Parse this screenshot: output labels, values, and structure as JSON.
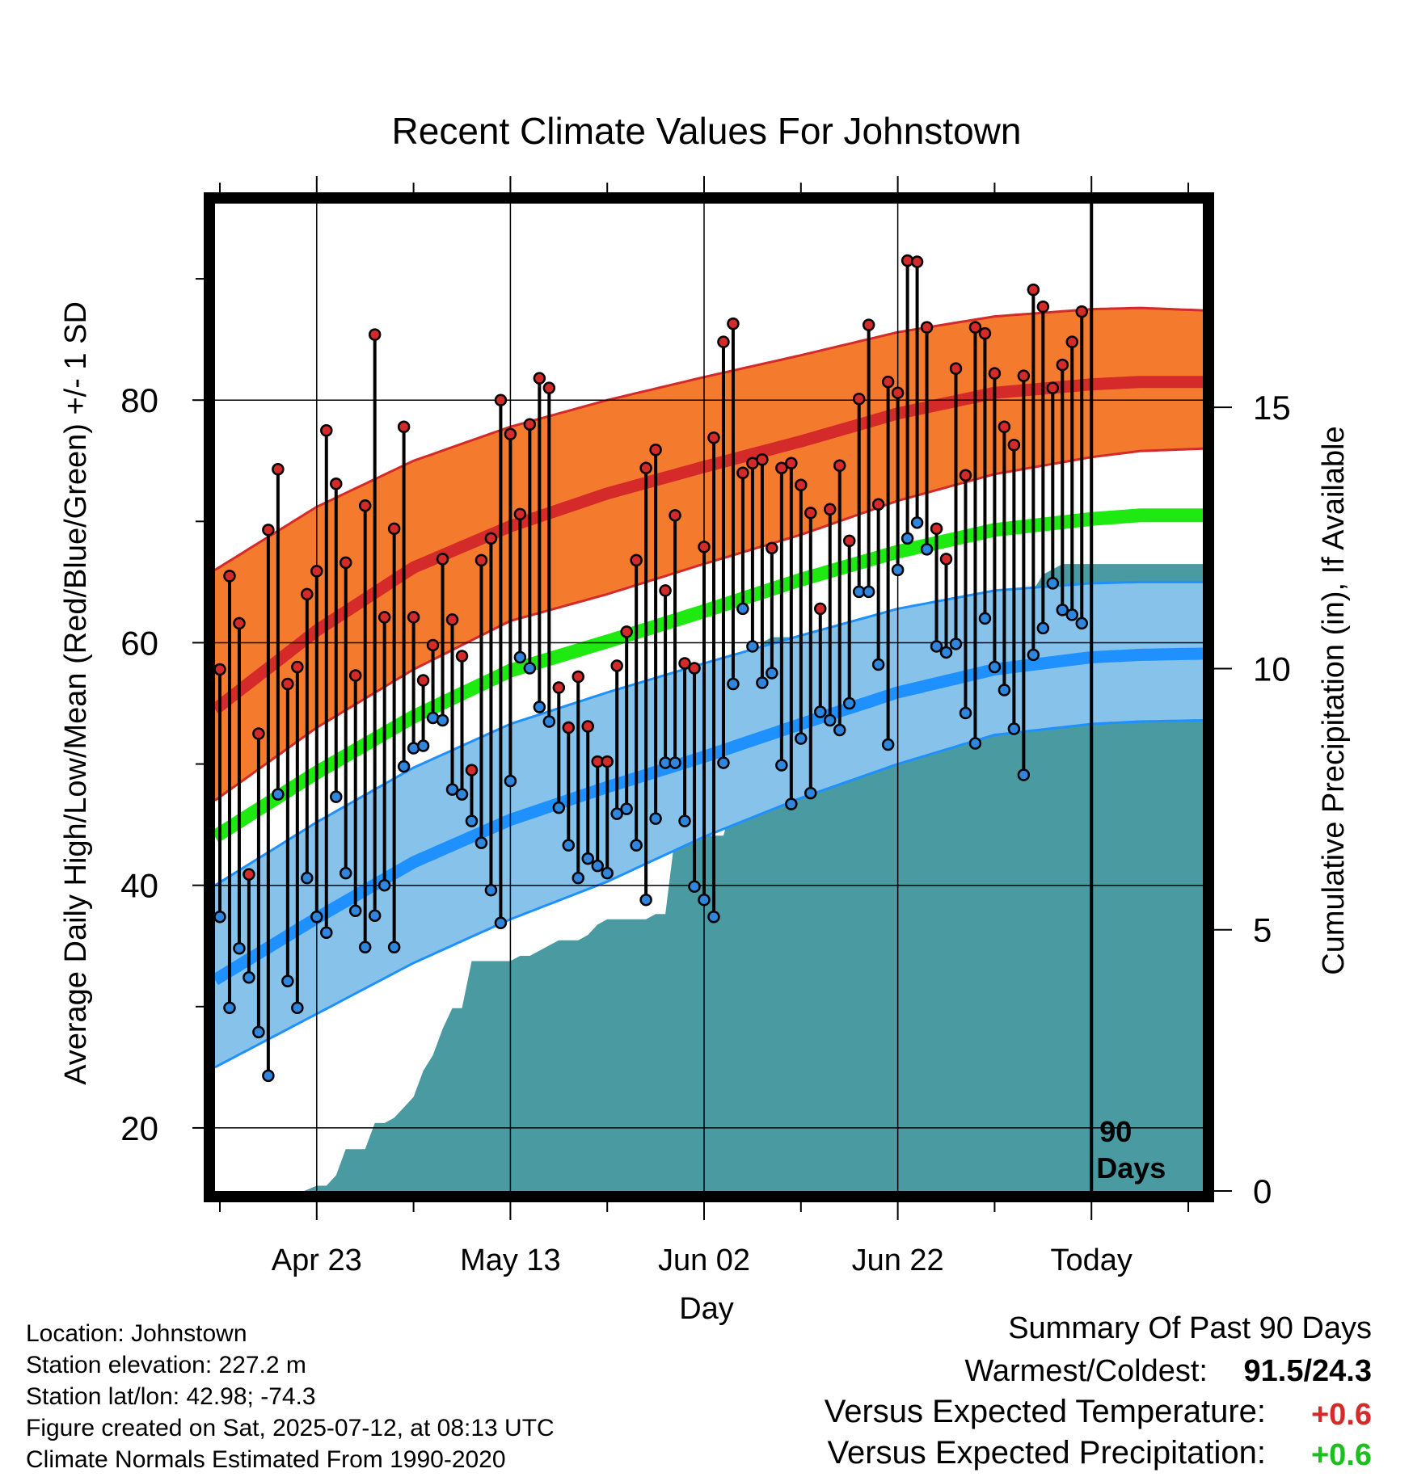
{
  "chart_data": {
    "type": "line",
    "title": "Recent Climate Values For Johnstown",
    "ylabel": "Average Daily High/Low/Mean (Red/Blue/Green) +/- 1 SD",
    "ylabel_right": "Cumulative Precipitation (in), If Available",
    "xlabel": "Day",
    "ylim": [
      14.8,
      96.2
    ],
    "ylim_right": [
      0,
      18.9
    ],
    "xlim": [
      -10.5,
      91.5
    ],
    "yticks": [
      20,
      40,
      60,
      80
    ],
    "yticks_right": [
      0,
      5,
      10,
      15
    ],
    "x_ticks": [
      {
        "day": 0,
        "label": "Apr 23"
      },
      {
        "day": 20,
        "label": "May 13"
      },
      {
        "day": 40,
        "label": "Jun 02"
      },
      {
        "day": 60,
        "label": "Jun 22"
      },
      {
        "day": 80,
        "label": "Today"
      }
    ],
    "today_marker_label": [
      "90",
      "Days"
    ],
    "colors": {
      "high_band": "#F47A2E",
      "high_line": "#D42A2A",
      "low_band": "#86C2EA",
      "low_line": "#1E90FF",
      "mean_line": "#1EEA12",
      "precip": "#4A9AA2",
      "high_dot": "#D42A2A",
      "low_dot": "#2E86DE",
      "positive_temp": "#D42A2A",
      "positive_precip": "#1EBE1E"
    },
    "normals": {
      "days": [
        -10.5,
        0,
        10,
        20,
        30,
        40,
        50,
        60,
        70,
        80,
        85,
        91.5
      ],
      "high_mean": [
        54.5,
        61.0,
        66.2,
        69.6,
        72.3,
        74.5,
        76.6,
        78.9,
        80.6,
        81.3,
        81.5,
        81.5
      ],
      "high_sd_upper": [
        66.0,
        71.2,
        75.0,
        77.8,
        80.0,
        81.9,
        83.7,
        85.6,
        86.9,
        87.5,
        87.6,
        87.4
      ],
      "high_sd_lower": [
        47.0,
        53.0,
        57.8,
        61.8,
        64.0,
        66.5,
        68.9,
        71.7,
        73.9,
        75.3,
        75.8,
        76.0
      ],
      "mean": [
        44.0,
        49.3,
        53.9,
        57.7,
        60.1,
        62.6,
        65.2,
        67.5,
        69.3,
        70.2,
        70.5,
        70.5
      ],
      "low_mean": [
        32.2,
        37.3,
        41.9,
        45.4,
        48.1,
        50.6,
        53.3,
        55.9,
        57.8,
        58.8,
        59.0,
        59.1
      ],
      "low_sd_upper": [
        40.0,
        45.2,
        49.7,
        53.3,
        55.9,
        58.3,
        60.6,
        62.8,
        64.3,
        64.9,
        65.0,
        65.0
      ],
      "low_sd_lower": [
        25.0,
        29.4,
        33.6,
        37.2,
        40.3,
        44.0,
        47.2,
        50.0,
        52.4,
        53.3,
        53.5,
        53.6
      ]
    },
    "daily": {
      "days": [
        -10,
        -9,
        -8,
        -7,
        -6,
        -5,
        -4,
        -3,
        -2,
        -1,
        0,
        1,
        2,
        3,
        4,
        5,
        6,
        7,
        8,
        9,
        10,
        11,
        12,
        13,
        14,
        15,
        16,
        17,
        18,
        19,
        20,
        21,
        22,
        23,
        24,
        25,
        26,
        27,
        28,
        29,
        30,
        31,
        32,
        33,
        34,
        35,
        36,
        37,
        38,
        39,
        40,
        41,
        42,
        43,
        44,
        45,
        46,
        47,
        48,
        49,
        50,
        51,
        52,
        53,
        54,
        55,
        56,
        57,
        58,
        59,
        60,
        61,
        62,
        63,
        64,
        65,
        66,
        67,
        68,
        69,
        70,
        71,
        72,
        73,
        74,
        75,
        76,
        77,
        78,
        79
      ],
      "high": [
        57.8,
        65.5,
        61.6,
        40.9,
        52.5,
        69.3,
        74.3,
        56.6,
        58.0,
        64.0,
        65.9,
        77.5,
        73.1,
        66.6,
        57.3,
        71.3,
        85.4,
        62.1,
        69.4,
        77.8,
        62.1,
        56.9,
        59.8,
        66.9,
        61.9,
        58.9,
        49.5,
        66.8,
        68.6,
        80.0,
        77.2,
        70.6,
        78.0,
        81.8,
        81.0,
        56.3,
        53.0,
        57.2,
        53.1,
        50.2,
        50.2,
        58.1,
        60.9,
        66.8,
        74.4,
        75.9,
        64.3,
        70.5,
        58.3,
        57.9,
        67.9,
        76.9,
        84.8,
        86.3,
        74.0,
        74.8,
        75.1,
        67.8,
        74.4,
        74.8,
        73.0,
        70.7,
        62.8,
        71.0,
        74.6,
        68.4,
        80.1,
        86.2,
        71.4,
        81.5,
        80.6,
        91.5,
        91.4,
        86.0,
        69.4,
        66.9,
        82.6,
        73.8,
        86.0,
        85.5,
        82.2,
        77.8,
        76.3,
        82.0,
        89.1,
        87.7,
        81.0,
        82.9,
        84.8,
        87.3
      ],
      "low": [
        37.4,
        29.9,
        34.8,
        32.4,
        27.9,
        24.3,
        47.5,
        32.1,
        29.9,
        40.6,
        37.4,
        36.1,
        47.3,
        41.0,
        37.9,
        34.9,
        37.5,
        40.0,
        34.9,
        49.8,
        51.3,
        51.5,
        53.8,
        53.6,
        47.9,
        47.5,
        45.3,
        43.5,
        39.6,
        36.9,
        48.6,
        58.8,
        57.9,
        54.7,
        53.5,
        46.4,
        43.3,
        40.6,
        42.2,
        41.6,
        41.0,
        45.9,
        46.3,
        43.3,
        38.8,
        45.5,
        50.1,
        50.1,
        45.3,
        39.9,
        38.8,
        37.4,
        50.1,
        56.6,
        62.8,
        59.7,
        56.7,
        57.5,
        49.9,
        46.7,
        52.1,
        47.6,
        54.3,
        53.6,
        52.8,
        55.0,
        64.2,
        64.2,
        58.2,
        51.6,
        66.0,
        68.6,
        69.9,
        67.7,
        59.7,
        59.2,
        59.9,
        54.2,
        51.7,
        62.0,
        58.0,
        56.1,
        52.9,
        49.1,
        59.0,
        61.2,
        64.9,
        62.7,
        62.3,
        61.6
      ]
    },
    "precip_cumulative": {
      "days": [
        -10.5,
        -1.3,
        0,
        1,
        2,
        3,
        4,
        5,
        6,
        7,
        8,
        9,
        10,
        11,
        12,
        13,
        14,
        15,
        16,
        17,
        18,
        19,
        20,
        21,
        22,
        23,
        24,
        25,
        26,
        27,
        28,
        29,
        30,
        31,
        32,
        33,
        34,
        35,
        36,
        37,
        38,
        39,
        40,
        41,
        42,
        43,
        44,
        45,
        46,
        47,
        48,
        49,
        50,
        51,
        52,
        53,
        54,
        55,
        56,
        57,
        58,
        59,
        60,
        61,
        62,
        63,
        64,
        65,
        66,
        67,
        68,
        69,
        70,
        71,
        72,
        73,
        74,
        75,
        76,
        77,
        78,
        79,
        80,
        91.5
      ],
      "values": [
        0,
        0,
        0.1,
        0.1,
        0.3,
        0.8,
        0.8,
        0.8,
        1.3,
        1.3,
        1.4,
        1.6,
        1.8,
        2.3,
        2.6,
        3.1,
        3.5,
        3.5,
        4.4,
        4.4,
        4.4,
        4.4,
        4.4,
        4.5,
        4.5,
        4.6,
        4.7,
        4.8,
        4.8,
        4.8,
        4.9,
        5.1,
        5.2,
        5.2,
        5.2,
        5.2,
        5.2,
        5.3,
        5.3,
        6.8,
        6.8,
        6.8,
        6.8,
        6.8,
        6.8,
        7.5,
        9.5,
        9.6,
        10.5,
        10.6,
        10.6,
        10.6,
        10.6,
        10.6,
        10.6,
        10.6,
        10.6,
        10.6,
        10.7,
        10.7,
        10.7,
        10.7,
        11.0,
        11.1,
        11.1,
        11.1,
        11.1,
        11.1,
        11.2,
        11.2,
        11.2,
        11.3,
        11.3,
        11.3,
        11.3,
        11.5,
        11.5,
        11.8,
        11.9,
        12.0,
        12.0,
        12.0,
        12.0,
        12.0
      ]
    }
  },
  "info": {
    "location": "Location: Johnstown",
    "elevation": "Station elevation: 227.2 m",
    "latlon": "Station lat/lon: 42.98; -74.3",
    "created": "Figure created on Sat, 2025-07-12, at 08:13 UTC",
    "normals": "Climate Normals Estimated From 1990-2020"
  },
  "summary": {
    "heading": "Summary Of Past 90 Days",
    "warmest_label": "Warmest/Coldest:",
    "warmest_value": "91.5/24.3",
    "temp_label": "Versus Expected Temperature:",
    "temp_value": "+0.6",
    "precip_label": "Versus Expected Precipitation:",
    "precip_value": "+0.6"
  }
}
